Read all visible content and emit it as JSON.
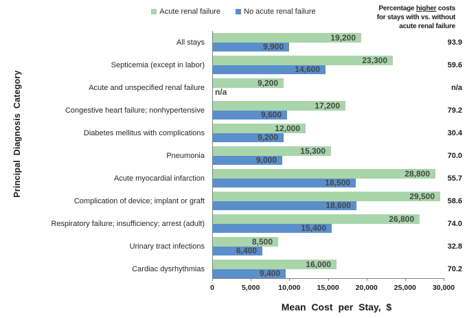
{
  "colors": {
    "green": "#a9d5ab",
    "blue": "#5a8fcc",
    "value_text": "#464646",
    "axis": "#808080"
  },
  "legend": [
    {
      "label": "Acute renal failure",
      "color_key": "green"
    },
    {
      "label": "No acute renal failure",
      "color_key": "blue"
    }
  ],
  "pct_header": {
    "lines": [
      "Percentage higher costs",
      "for stays with vs. without",
      "acute renal failure"
    ],
    "underline_word": "higher"
  },
  "chart_data": {
    "type": "bar",
    "orientation": "horizontal",
    "title": "",
    "xlabel": "Mean Cost per Stay, $",
    "ylabel": "Principal Diagnosis Category",
    "xlim": [
      0,
      30000
    ],
    "x_ticks": [
      "0",
      "5,000",
      "10,000",
      "15,000",
      "20,000",
      "25,000",
      "30,000"
    ],
    "legend_position": "top",
    "categories": [
      "All stays",
      "Septicemia (except in labor)",
      "Acute and unspecified renal failure",
      "Congestive heart failure; nonhypertensive",
      "Diabetes mellitus with complications",
      "Pneumonia",
      "Acute myocardial infarction",
      "Complication of device; implant or graft",
      "Respiratory failure; insufficiency; arrest (adult)",
      "Urinary tract infections",
      "Cardiac dysrhythmias"
    ],
    "series": [
      {
        "name": "Acute renal failure",
        "values": [
          19200,
          23300,
          9200,
          17200,
          12000,
          15300,
          28800,
          29500,
          26800,
          8500,
          16000
        ]
      },
      {
        "name": "No acute renal failure",
        "values": [
          9900,
          14600,
          null,
          9600,
          9200,
          9000,
          18500,
          18600,
          15400,
          6400,
          9400
        ]
      }
    ],
    "value_labels": [
      [
        "19,200",
        "23,300",
        "9,200",
        "17,200",
        "12,000",
        "15,300",
        "28,800",
        "29,500",
        "26,800",
        "8,500",
        "16,000"
      ],
      [
        "9,900",
        "14,600",
        "n/a",
        "9,600",
        "9,200",
        "9,000",
        "18,500",
        "18,600",
        "15,400",
        "6,400",
        "9,400"
      ]
    ],
    "percent_higher": [
      "93.9",
      "59.6",
      "n/a",
      "79.2",
      "30.4",
      "70.0",
      "55.7",
      "58.6",
      "74.0",
      "32.8",
      "70.2"
    ]
  }
}
